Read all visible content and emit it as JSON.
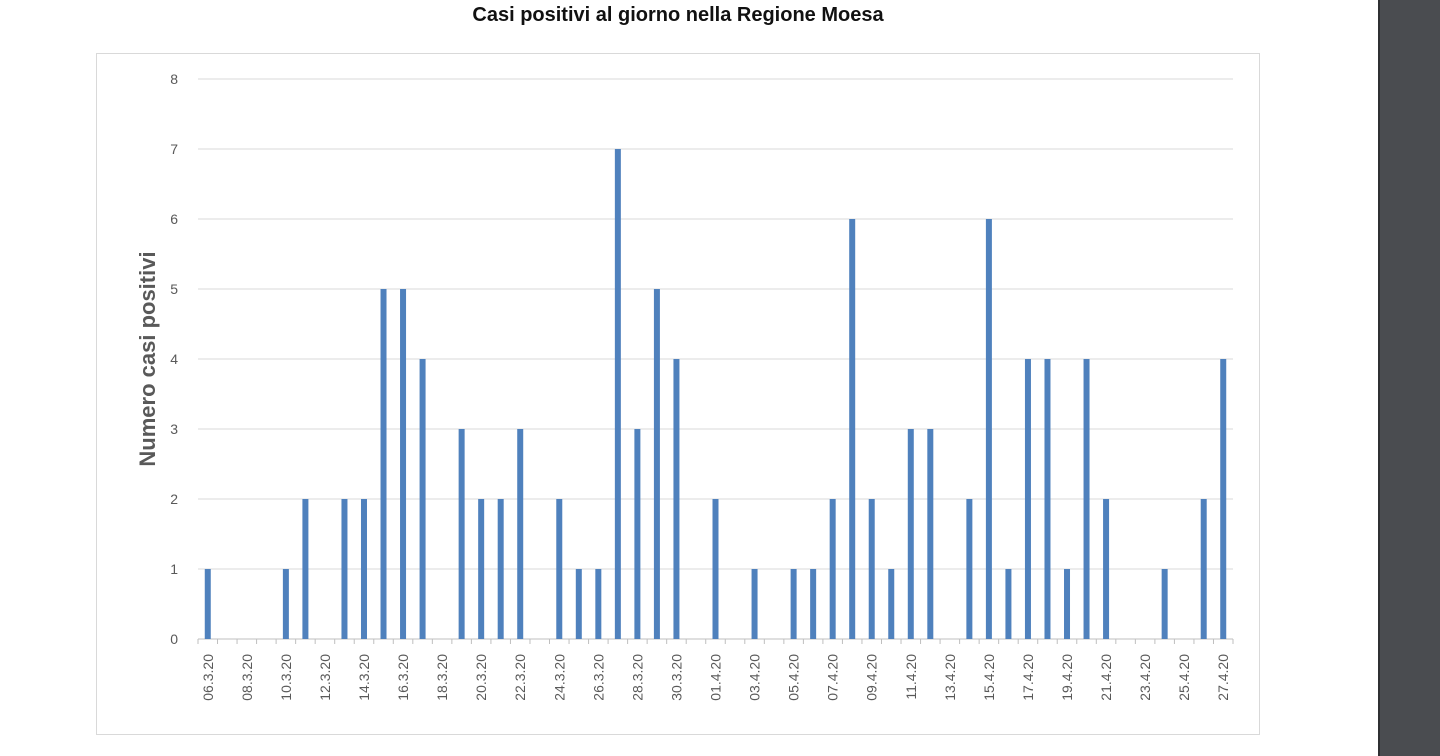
{
  "chart_data": {
    "type": "bar",
    "title": "Casi positivi al giorno nella Regione Moesa",
    "xlabel": "",
    "ylabel": "Numero casi positivi",
    "ylim": [
      0,
      8
    ],
    "yticks": [
      0,
      1,
      2,
      3,
      4,
      5,
      6,
      7,
      8
    ],
    "grid": true,
    "bar_color": "#4f81bd",
    "categories": [
      "06.3.20",
      "07.3.20",
      "08.3.20",
      "09.3.20",
      "10.3.20",
      "11.3.20",
      "12.3.20",
      "13.3.20",
      "14.3.20",
      "15.3.20",
      "16.3.20",
      "17.3.20",
      "18.3.20",
      "19.3.20",
      "20.3.20",
      "21.3.20",
      "22.3.20",
      "23.3.20",
      "24.3.20",
      "25.3.20",
      "26.3.20",
      "27.3.20",
      "28.3.20",
      "29.3.20",
      "30.3.20",
      "31.3.20",
      "01.4.20",
      "02.4.20",
      "03.4.20",
      "04.4.20",
      "05.4.20",
      "06.4.20",
      "07.4.20",
      "08.4.20",
      "09.4.20",
      "10.4.20",
      "11.4.20",
      "12.4.20",
      "13.4.20",
      "14.4.20",
      "15.4.20",
      "16.4.20",
      "17.4.20",
      "18.4.20",
      "19.4.20",
      "20.4.20",
      "21.4.20",
      "22.4.20",
      "23.4.20",
      "24.4.20",
      "25.4.20",
      "26.4.20",
      "27.4.20"
    ],
    "tick_labels": [
      "06.3.20",
      "08.3.20",
      "10.3.20",
      "12.3.20",
      "14.3.20",
      "16.3.20",
      "18.3.20",
      "20.3.20",
      "22.3.20",
      "24.3.20",
      "26.3.20",
      "28.3.20",
      "30.3.20",
      "01.4.20",
      "03.4.20",
      "05.4.20",
      "07.4.20",
      "09.4.20",
      "11.4.20",
      "13.4.20",
      "15.4.20",
      "17.4.20",
      "19.4.20",
      "21.4.20",
      "23.4.20",
      "25.4.20",
      "27.4.20"
    ],
    "values": [
      1,
      0,
      0,
      0,
      1,
      2,
      0,
      2,
      2,
      5,
      5,
      4,
      0,
      3,
      2,
      2,
      3,
      0,
      2,
      1,
      1,
      7,
      3,
      5,
      4,
      0,
      2,
      0,
      1,
      0,
      1,
      1,
      2,
      6,
      2,
      1,
      3,
      3,
      0,
      2,
      6,
      1,
      4,
      4,
      1,
      4,
      2,
      0,
      0,
      1,
      0,
      2,
      4
    ]
  }
}
